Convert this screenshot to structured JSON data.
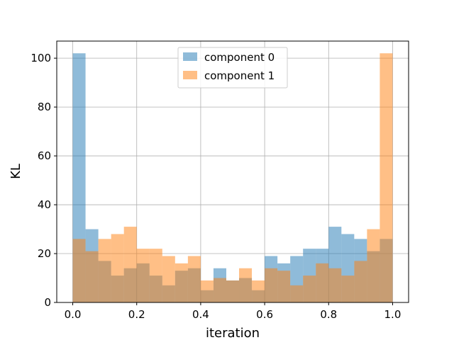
{
  "chart_data": {
    "type": "histogram",
    "xlabel": "iteration",
    "ylabel": "KL",
    "xlim": [
      -0.05,
      1.05
    ],
    "ylim": [
      0,
      107
    ],
    "xticks": [
      0.0,
      0.2,
      0.4,
      0.6,
      0.8,
      1.0
    ],
    "xtick_labels": [
      "0.0",
      "0.2",
      "0.4",
      "0.6",
      "0.8",
      "1.0"
    ],
    "yticks": [
      0,
      20,
      40,
      60,
      80,
      100
    ],
    "ytick_labels": [
      "0",
      "20",
      "40",
      "60",
      "80",
      "100"
    ],
    "grid": true,
    "legend_position": "upper center",
    "bin_edges": [
      0.0,
      0.04,
      0.08,
      0.12,
      0.16,
      0.2,
      0.24,
      0.28,
      0.32,
      0.36,
      0.4,
      0.44,
      0.48,
      0.52,
      0.56,
      0.6,
      0.64,
      0.68,
      0.72,
      0.76,
      0.8,
      0.84,
      0.88,
      0.92,
      0.96,
      1.0
    ],
    "series": [
      {
        "name": "component 0",
        "color": "#1f77b4",
        "values": [
          102,
          30,
          17,
          11,
          14,
          16,
          11,
          7,
          13,
          14,
          5,
          14,
          9,
          10,
          5,
          19,
          16,
          19,
          22,
          22,
          31,
          28,
          26,
          21,
          26
        ]
      },
      {
        "name": "component 1",
        "color": "#ff7f0e",
        "values": [
          26,
          21,
          26,
          28,
          31,
          22,
          22,
          19,
          16,
          19,
          9,
          10,
          9,
          14,
          9,
          14,
          13,
          7,
          11,
          16,
          14,
          11,
          17,
          30,
          102
        ]
      }
    ]
  }
}
